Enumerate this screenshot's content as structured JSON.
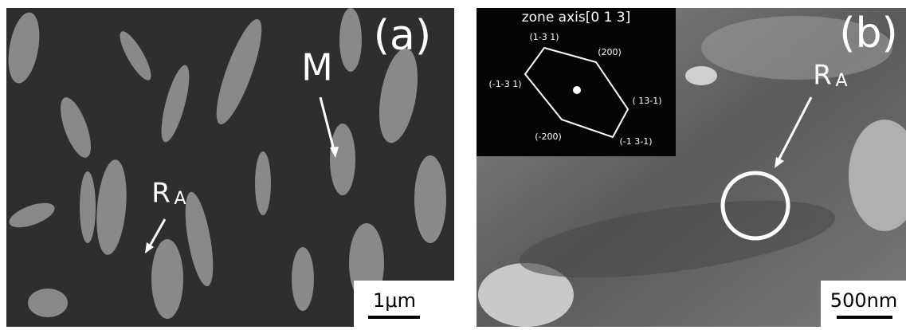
{
  "panels": [
    {
      "label": "(a)",
      "annotations": [
        {
          "text": "M"
        },
        {
          "text": "R",
          "subscript": "A"
        }
      ],
      "scale_bar": "1μm"
    },
    {
      "label": "(b)",
      "inset": {
        "title": "zone axis[0 1 3]",
        "spots": [
          "(1-3 1)",
          "(200)",
          "(-1-3 1)",
          "( 13-1)",
          "(-200)",
          "(-1 3-1)"
        ]
      },
      "annotations": [
        {
          "text": "R",
          "subscript": "A"
        }
      ],
      "scale_bar": "500nm"
    }
  ]
}
